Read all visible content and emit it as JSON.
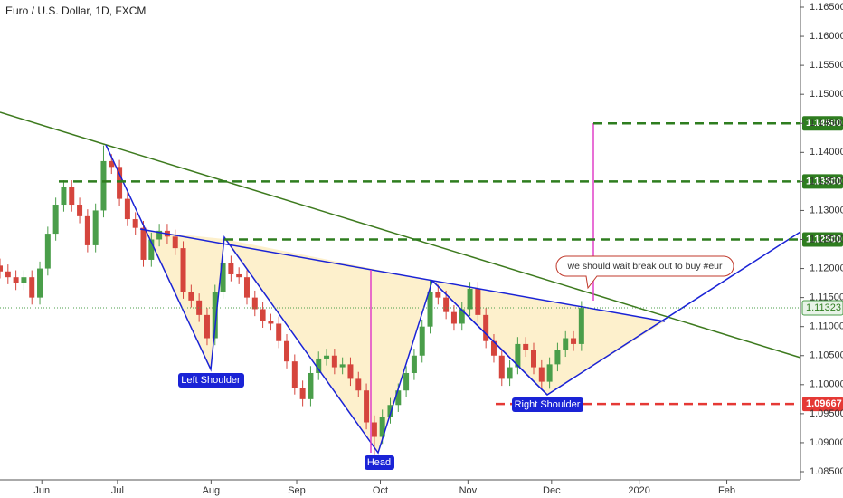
{
  "chart_data": {
    "type": "candlestick",
    "title": "Euro / U.S. Dollar, 1D, FXCM",
    "x": [
      0,
      2,
      4,
      6,
      8,
      10,
      12,
      14,
      16,
      18,
      20,
      22,
      24,
      26,
      28,
      30,
      32,
      34,
      36,
      38,
      40,
      42,
      44,
      46,
      48,
      50,
      52,
      54,
      56,
      58,
      60,
      62,
      64,
      66,
      68,
      70,
      72,
      74,
      76,
      78,
      80,
      82,
      84,
      86,
      88,
      90,
      92,
      94,
      96,
      98,
      100,
      102,
      104,
      106,
      108,
      110,
      112,
      114,
      116,
      118,
      120,
      122,
      124,
      126,
      128,
      130,
      132,
      134,
      136,
      138,
      140,
      142,
      144,
      146
    ],
    "open": [
      1.1205,
      1.1195,
      1.1185,
      1.1175,
      1.1185,
      1.115,
      1.12,
      1.126,
      1.131,
      1.134,
      1.131,
      1.129,
      1.124,
      1.13,
      1.1385,
      1.1375,
      1.132,
      1.1285,
      1.127,
      1.1215,
      1.125,
      1.1265,
      1.1255,
      1.1235,
      1.116,
      1.1145,
      1.112,
      1.108,
      1.116,
      1.121,
      1.119,
      1.1185,
      1.115,
      1.113,
      1.111,
      1.1105,
      1.1075,
      1.104,
      1.0995,
      1.0975,
      1.102,
      1.1045,
      1.105,
      1.103,
      1.1035,
      1.101,
      1.099,
      1.0935,
      1.091,
      1.0945,
      1.0965,
      1.099,
      1.102,
      1.105,
      1.11,
      1.116,
      1.115,
      1.1125,
      1.1105,
      1.113,
      1.1165,
      1.112,
      1.1075,
      1.105,
      1.101,
      1.103,
      1.107,
      1.106,
      1.103,
      1.1005,
      1.1035,
      1.106,
      1.108,
      1.107
    ],
    "high": [
      1.1217,
      1.1207,
      1.1197,
      1.1197,
      1.1197,
      1.1212,
      1.1272,
      1.1322,
      1.1352,
      1.1352,
      1.1322,
      1.1302,
      1.1312,
      1.1412,
      1.1397,
      1.1387,
      1.1332,
      1.1297,
      1.1282,
      1.1262,
      1.1277,
      1.1277,
      1.1267,
      1.1247,
      1.1172,
      1.1157,
      1.1132,
      1.1172,
      1.1222,
      1.1222,
      1.1202,
      1.1197,
      1.1162,
      1.1142,
      1.1122,
      1.1117,
      1.1087,
      1.1052,
      1.1007,
      1.1032,
      1.1057,
      1.1062,
      1.1062,
      1.1047,
      1.1047,
      1.1022,
      1.1002,
      1.0947,
      1.0957,
      1.0977,
      1.1002,
      1.1032,
      1.1062,
      1.1112,
      1.118,
      1.1172,
      1.1162,
      1.1137,
      1.1142,
      1.1177,
      1.1177,
      1.1132,
      1.1087,
      1.1062,
      1.1042,
      1.1082,
      1.1082,
      1.1072,
      1.1042,
      1.1047,
      1.1072,
      1.1092,
      1.1092,
      1.1144
    ],
    "low": [
      1.1183,
      1.1173,
      1.1163,
      1.1163,
      1.1138,
      1.1138,
      1.1188,
      1.1248,
      1.1298,
      1.1298,
      1.1278,
      1.1228,
      1.1228,
      1.1288,
      1.1363,
      1.1308,
      1.1273,
      1.1258,
      1.1203,
      1.1203,
      1.1238,
      1.1243,
      1.1223,
      1.1148,
      1.1133,
      1.1108,
      1.1068,
      1.1068,
      1.1148,
      1.1178,
      1.1173,
      1.1138,
      1.1118,
      1.1098,
      1.1093,
      1.1063,
      1.1028,
      1.0983,
      1.0963,
      1.0963,
      1.1008,
      1.1033,
      1.1018,
      1.1018,
      1.0998,
      1.0978,
      1.0923,
      1.088,
      1.0898,
      1.0933,
      1.0953,
      1.0978,
      1.1008,
      1.1038,
      1.1088,
      1.1138,
      1.1113,
      1.1093,
      1.1093,
      1.1118,
      1.1108,
      1.1063,
      1.1038,
      1.0998,
      1.0998,
      1.1018,
      1.1048,
      1.1018,
      1.0993,
      1.0993,
      1.1023,
      1.1048,
      1.1058,
      1.1058
    ],
    "close": [
      1.1195,
      1.1185,
      1.1175,
      1.1185,
      1.115,
      1.12,
      1.126,
      1.131,
      1.134,
      1.131,
      1.129,
      1.124,
      1.13,
      1.1385,
      1.1375,
      1.132,
      1.1285,
      1.127,
      1.1215,
      1.125,
      1.1265,
      1.1255,
      1.1235,
      1.116,
      1.1145,
      1.112,
      1.108,
      1.116,
      1.121,
      1.119,
      1.1185,
      1.115,
      1.113,
      1.111,
      1.1105,
      1.1075,
      1.104,
      1.0995,
      1.0975,
      1.102,
      1.1045,
      1.105,
      1.103,
      1.1035,
      1.101,
      1.099,
      1.0935,
      1.091,
      1.0945,
      1.0965,
      1.099,
      1.102,
      1.105,
      1.11,
      1.116,
      1.115,
      1.1125,
      1.1105,
      1.113,
      1.1165,
      1.112,
      1.1075,
      1.105,
      1.101,
      1.103,
      1.107,
      1.106,
      1.103,
      1.1005,
      1.1035,
      1.106,
      1.108,
      1.107,
      1.1132
    ],
    "up_color": "#4a9e4a",
    "down_color": "#d5453d",
    "xlim": [
      0,
      201
    ],
    "xticks": [
      {
        "value": 10.5,
        "label": "Jun"
      },
      {
        "value": 29.5,
        "label": "Jul"
      },
      {
        "value": 53,
        "label": "Aug"
      },
      {
        "value": 74.5,
        "label": "Sep"
      },
      {
        "value": 95.5,
        "label": "Oct"
      },
      {
        "value": 117.5,
        "label": "Nov"
      },
      {
        "value": 138.5,
        "label": "Dec"
      },
      {
        "value": 160.5,
        "label": "2020"
      },
      {
        "value": 182.5,
        "label": "Feb"
      }
    ],
    "ylim": [
      1.085,
      1.165
    ],
    "yticks": [
      {
        "value": 1.085,
        "label": "1.08500"
      },
      {
        "value": 1.09,
        "label": "1.09000"
      },
      {
        "value": 1.095,
        "label": "1.09500"
      },
      {
        "value": 1.1,
        "label": "1.10000"
      },
      {
        "value": 1.105,
        "label": "1.10500"
      },
      {
        "value": 1.11,
        "label": "1.11000"
      },
      {
        "value": 1.115,
        "label": "1.11500"
      },
      {
        "value": 1.12,
        "label": "1.12000"
      },
      {
        "value": 1.125,
        "label": "1.12500"
      },
      {
        "value": 1.13,
        "label": "1.13000"
      },
      {
        "value": 1.135,
        "label": "1.13500"
      },
      {
        "value": 1.14,
        "label": "1.14000"
      },
      {
        "value": 1.145,
        "label": "1.14500"
      },
      {
        "value": 1.15,
        "label": "1.15000"
      },
      {
        "value": 1.155,
        "label": "1.15500"
      },
      {
        "value": 1.16,
        "label": "1.16000"
      },
      {
        "value": 1.165,
        "label": "1.16500"
      }
    ],
    "levels": [
      {
        "value": 1.145,
        "label": "1.14500",
        "color": "#2e7d1f"
      },
      {
        "value": 1.135,
        "label": "1.13500",
        "color": "#2e7d1f"
      },
      {
        "value": 1.125,
        "label": "1.12500",
        "color": "#2e7d1f"
      },
      {
        "value": 1.09667,
        "label": "1.09667",
        "color": "#e53935"
      }
    ],
    "last_price": {
      "value": 1.11323,
      "label": "1.11323"
    },
    "annotations": [
      "Left Shoulder",
      "Head",
      "Right Shoulder",
      "we should wait break out to buy #eur"
    ]
  }
}
